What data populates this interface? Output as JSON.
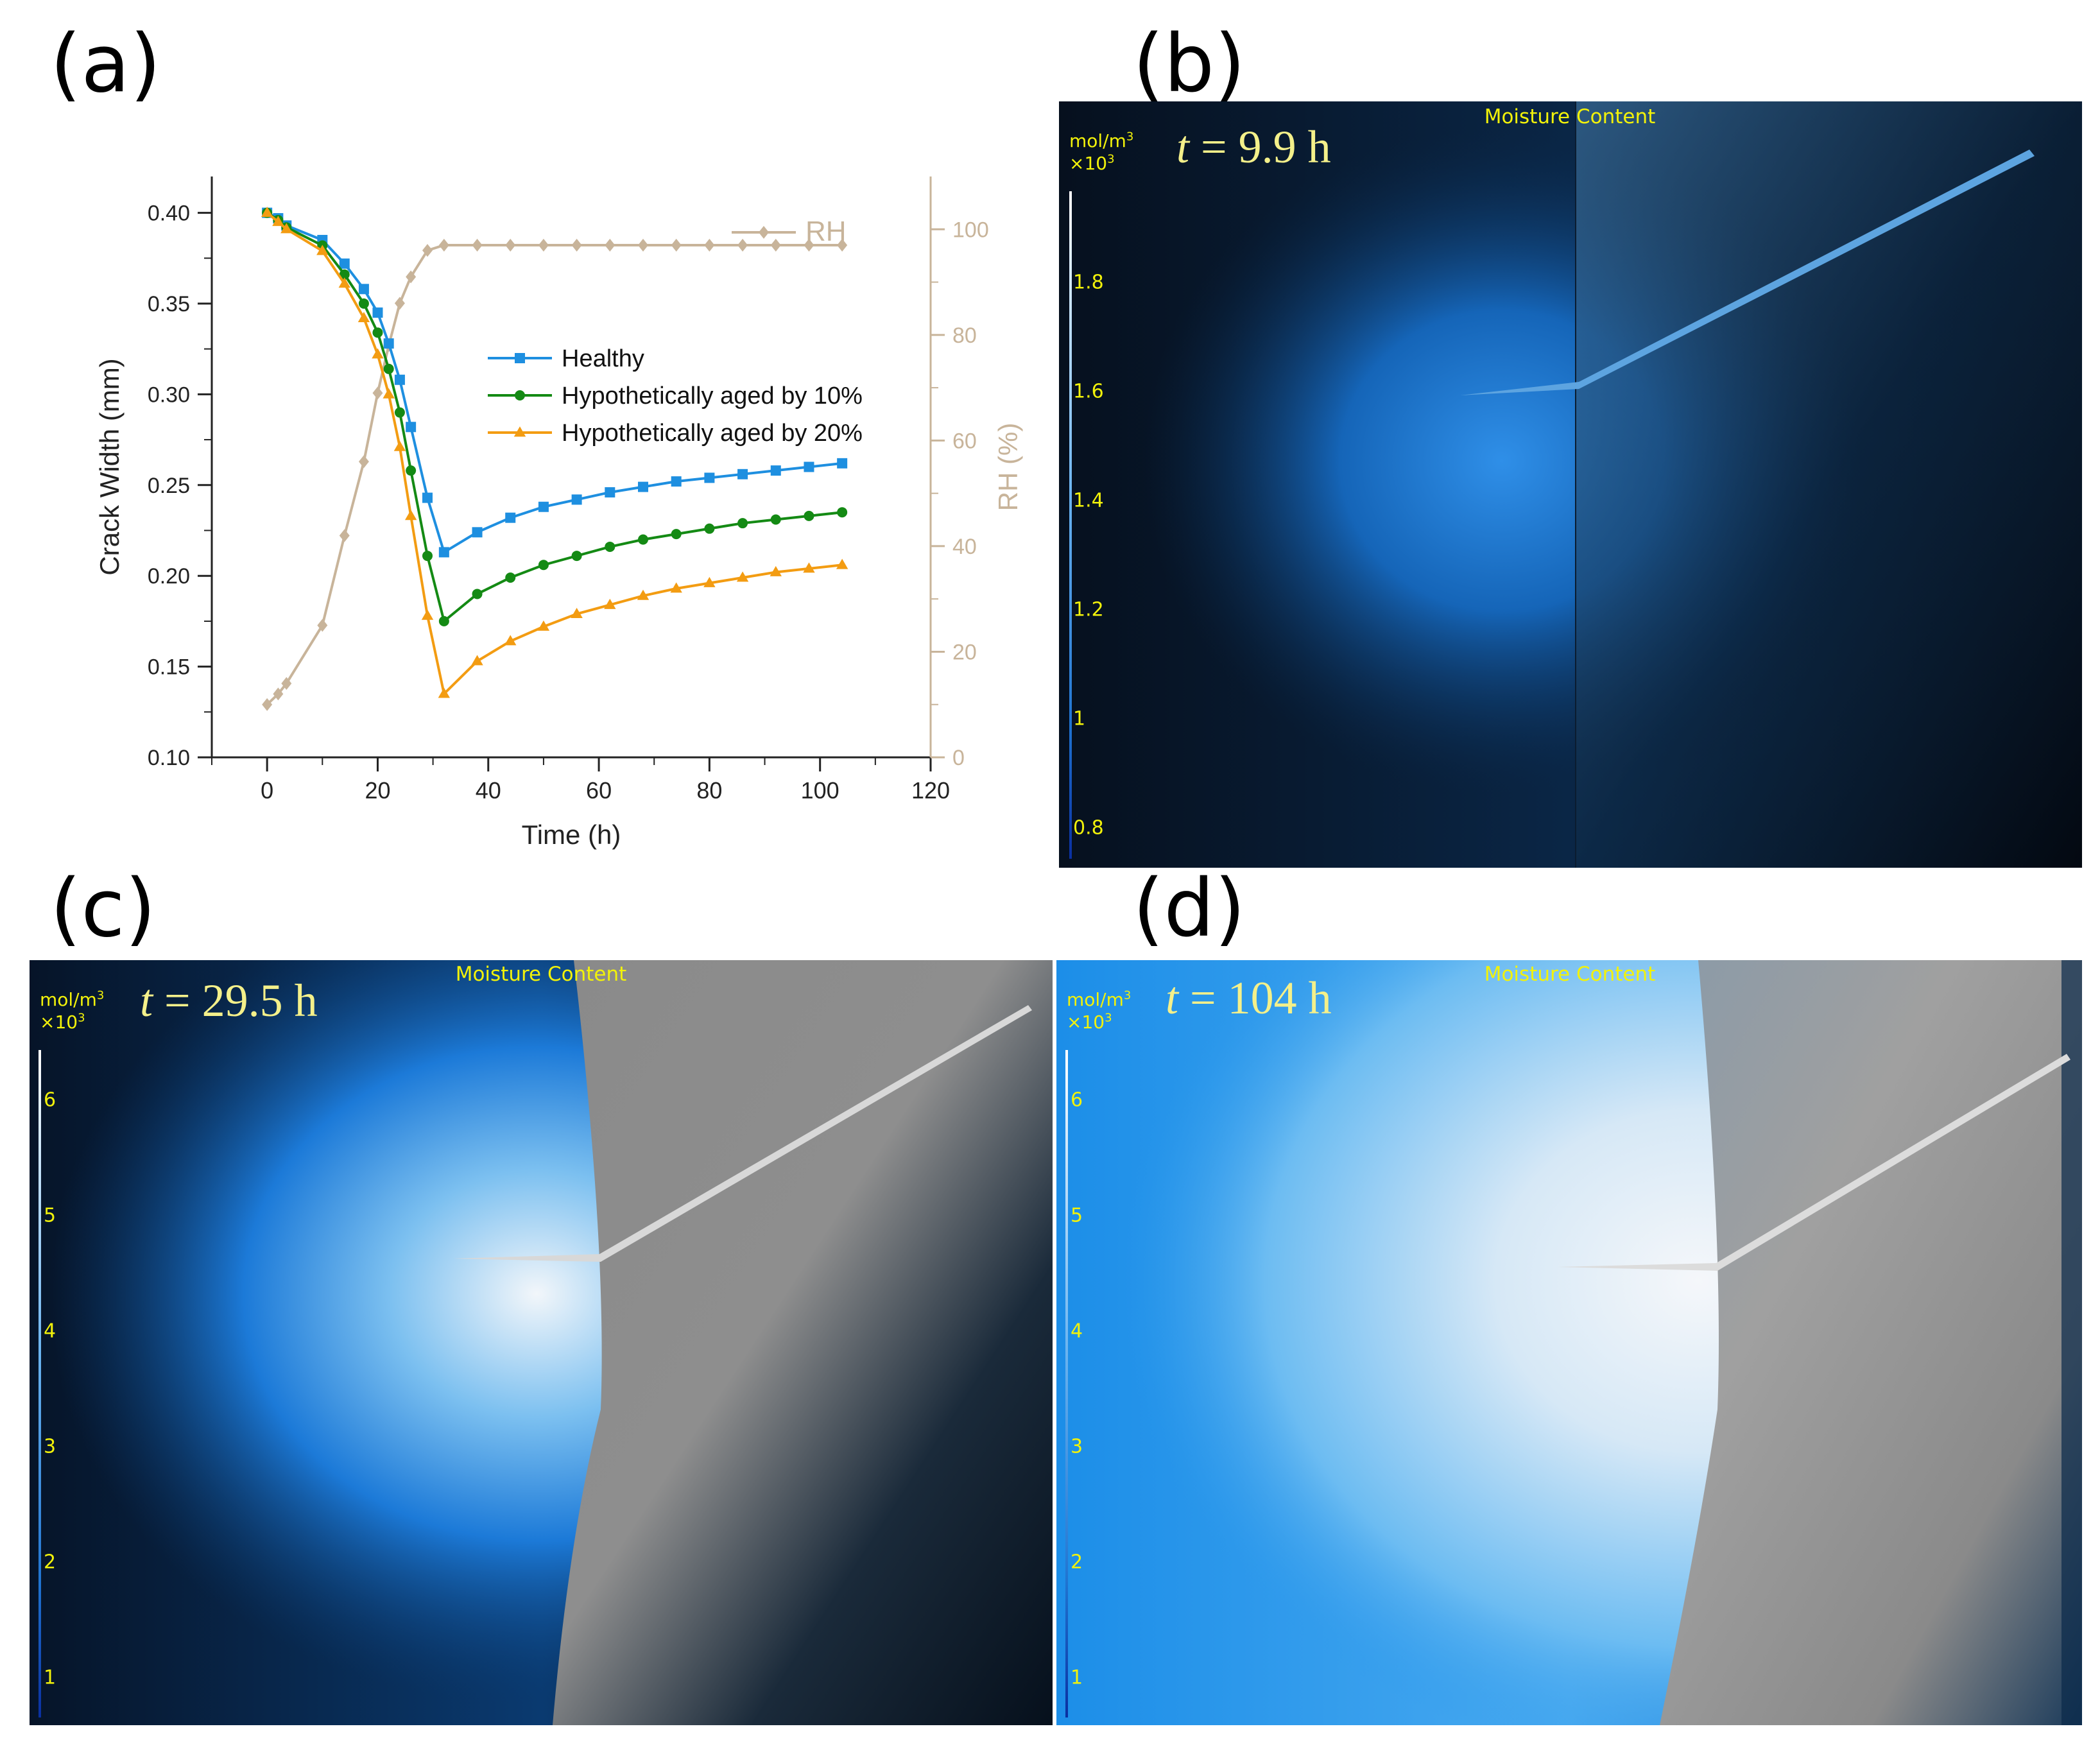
{
  "panels": {
    "a": {
      "label": "(a)"
    },
    "b": {
      "label": "(b)",
      "title": "Moisture Content",
      "time_var": "t",
      "time_rest": " = 9.9 h",
      "unit_line1": "mol/m",
      "unit_sup": "3",
      "unit_line2": "×10",
      "unit_sup2": "3",
      "ticks": [
        "1.8",
        "1.6",
        "1.4",
        "1.2",
        "1",
        "0.8"
      ]
    },
    "c": {
      "label": "(c)",
      "title": "Moisture Content",
      "time_var": "t",
      "time_rest": " = 29.5 h",
      "unit_line1": "mol/m",
      "unit_sup": "3",
      "unit_line2": "×10",
      "unit_sup2": "3",
      "ticks": [
        "6",
        "5",
        "4",
        "3",
        "2",
        "1"
      ]
    },
    "d": {
      "label": "(d)",
      "title": "Moisture Content",
      "time_var": "t",
      "time_rest": " = 104 h",
      "unit_line1": "mol/m",
      "unit_sup": "3",
      "unit_line2": "×10",
      "unit_sup2": "3",
      "ticks": [
        "6",
        "5",
        "4",
        "3",
        "2",
        "1"
      ]
    }
  },
  "colors": {
    "healthy": "#1e8fe0",
    "aged10": "#148a14",
    "aged20": "#f39c12",
    "rh": "#c8b49a"
  },
  "chart_data": {
    "type": "line",
    "xlabel": "Time (h)",
    "ylabel": "Crack Width (mm)",
    "y2label": "RH (%)",
    "xlim": [
      -10,
      120
    ],
    "ylim": [
      0.1,
      0.42
    ],
    "y2lim": [
      0,
      110
    ],
    "xticks": [
      "0",
      "20",
      "40",
      "60",
      "80",
      "100",
      "120"
    ],
    "yticks": [
      "0.10",
      "0.15",
      "0.20",
      "0.25",
      "0.30",
      "0.35",
      "0.40"
    ],
    "y2ticks": [
      "0",
      "20",
      "40",
      "60",
      "80",
      "100"
    ],
    "series": [
      {
        "name": "Healthy",
        "axis": "left",
        "marker": "square",
        "x": [
          0,
          2,
          3.5,
          10,
          14,
          17.5,
          20,
          22,
          24,
          26,
          29,
          32,
          38,
          44,
          50,
          56,
          62,
          68,
          74,
          80,
          86,
          92,
          98,
          104
        ],
        "y": [
          0.4,
          0.397,
          0.393,
          0.385,
          0.372,
          0.358,
          0.345,
          0.328,
          0.308,
          0.282,
          0.243,
          0.213,
          0.224,
          0.232,
          0.238,
          0.242,
          0.246,
          0.249,
          0.252,
          0.254,
          0.256,
          0.258,
          0.26,
          0.262
        ]
      },
      {
        "name": "Hypothetically aged by 10%",
        "axis": "left",
        "marker": "circle",
        "x": [
          0,
          2,
          3.5,
          10,
          14,
          17.5,
          20,
          22,
          24,
          26,
          29,
          32,
          38,
          44,
          50,
          56,
          62,
          68,
          74,
          80,
          86,
          92,
          98,
          104
        ],
        "y": [
          0.4,
          0.396,
          0.392,
          0.382,
          0.366,
          0.35,
          0.334,
          0.314,
          0.29,
          0.258,
          0.211,
          0.175,
          0.19,
          0.199,
          0.206,
          0.211,
          0.216,
          0.22,
          0.223,
          0.226,
          0.229,
          0.231,
          0.233,
          0.235
        ]
      },
      {
        "name": "Hypothetically aged by 20%",
        "axis": "left",
        "marker": "triangle",
        "x": [
          0,
          2,
          3.5,
          10,
          14,
          17.5,
          20,
          22,
          24,
          26,
          29,
          32,
          38,
          44,
          50,
          56,
          62,
          68,
          74,
          80,
          86,
          92,
          98,
          104
        ],
        "y": [
          0.4,
          0.395,
          0.391,
          0.379,
          0.361,
          0.342,
          0.322,
          0.3,
          0.271,
          0.233,
          0.178,
          0.135,
          0.153,
          0.164,
          0.172,
          0.179,
          0.184,
          0.189,
          0.193,
          0.196,
          0.199,
          0.202,
          0.204,
          0.206
        ]
      },
      {
        "name": "RH",
        "axis": "right",
        "marker": "diamond",
        "x": [
          0,
          2,
          3.5,
          10,
          14,
          17.5,
          20,
          22,
          24,
          26,
          29,
          32,
          38,
          44,
          50,
          56,
          62,
          68,
          74,
          80,
          86,
          92,
          98,
          104
        ],
        "y": [
          10,
          12,
          14,
          25,
          42,
          56,
          69,
          78,
          86,
          91,
          96,
          97,
          97,
          97,
          97,
          97,
          97,
          97,
          97,
          97,
          97,
          97,
          97,
          97
        ]
      }
    ]
  }
}
